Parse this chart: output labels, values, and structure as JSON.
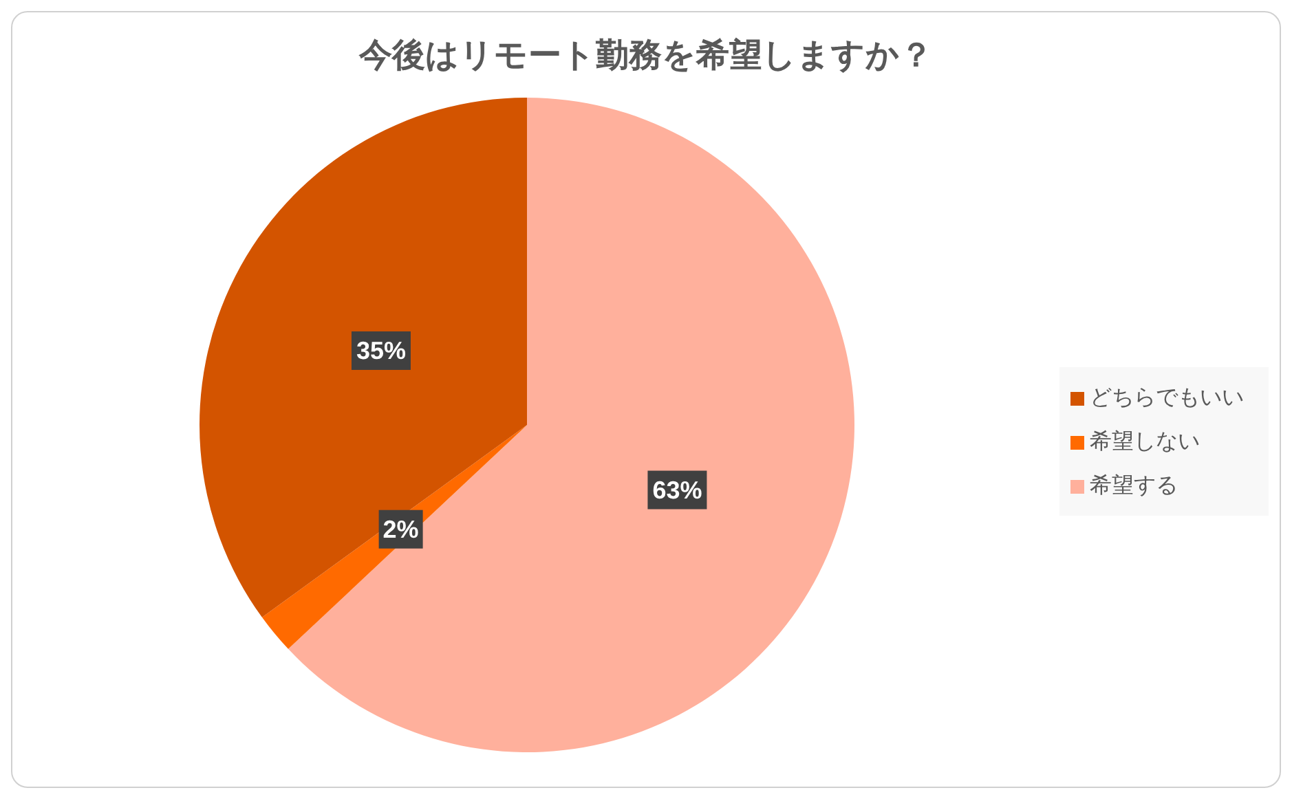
{
  "chart_data": {
    "type": "pie",
    "title": "今後はリモート勤務を希望しますか？",
    "categories": [
      "希望する",
      "希望しない",
      "どちらでもいい"
    ],
    "values": [
      63,
      2,
      35
    ],
    "colors": [
      "#ffb09c",
      "#ff6a00",
      "#d35400"
    ],
    "value_labels": [
      "63%",
      "2%",
      "35%"
    ],
    "legend": "right"
  }
}
